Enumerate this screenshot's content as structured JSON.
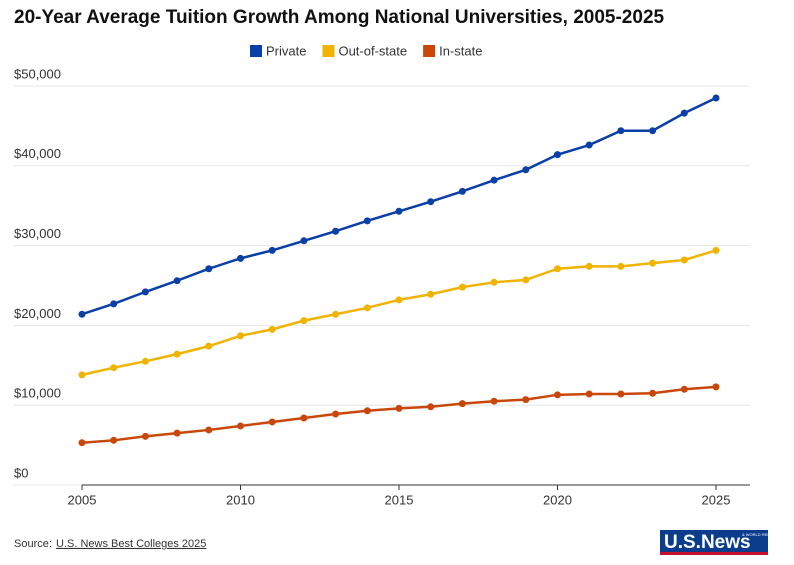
{
  "chart_data": {
    "type": "line",
    "title": "20-Year Average Tuition Growth Among National Universities, 2005-2025",
    "x": [
      2005,
      2006,
      2007,
      2008,
      2009,
      2010,
      2011,
      2012,
      2013,
      2014,
      2015,
      2016,
      2017,
      2018,
      2019,
      2020,
      2021,
      2022,
      2023,
      2024,
      2025
    ],
    "series": [
      {
        "name": "Private",
        "color": "#0a3fa8",
        "values": [
          21400,
          22700,
          24200,
          25600,
          27100,
          28400,
          29400,
          30600,
          31800,
          33100,
          34300,
          35500,
          36800,
          38200,
          39500,
          41400,
          42600,
          44400,
          44400,
          46600,
          48500
        ]
      },
      {
        "name": "Out-of-state",
        "color": "#f0b400",
        "values": [
          13800,
          14700,
          15500,
          16400,
          17400,
          18700,
          19500,
          20600,
          21400,
          22200,
          23200,
          23900,
          24800,
          25400,
          25700,
          27100,
          27400,
          27400,
          27800,
          28200,
          29400
        ]
      },
      {
        "name": "In-state",
        "color": "#c9470a",
        "values": [
          5300,
          5600,
          6100,
          6500,
          6900,
          7400,
          7900,
          8400,
          8900,
          9300,
          9600,
          9800,
          10200,
          10500,
          10700,
          11300,
          11400,
          11400,
          11500,
          12000,
          12300
        ]
      }
    ],
    "xlim": [
      2005,
      2025
    ],
    "xticks": [
      2005,
      2010,
      2015,
      2020,
      2025
    ],
    "ylim": [
      0,
      50000
    ],
    "yticks": [
      {
        "value": 0,
        "label": "$0"
      },
      {
        "value": 10000,
        "label": "$10,000"
      },
      {
        "value": 20000,
        "label": "$20,000"
      },
      {
        "value": 30000,
        "label": "$30,000"
      },
      {
        "value": 40000,
        "label": "$40,000"
      },
      {
        "value": 50000,
        "label": "$50,000"
      }
    ],
    "grid": true,
    "legend": "top",
    "source": {
      "prefix": "Source:",
      "link": "U.S. News Best Colleges 2025"
    },
    "logo": {
      "main": "U.S.News",
      "small": "& WORLD REPORT"
    }
  }
}
